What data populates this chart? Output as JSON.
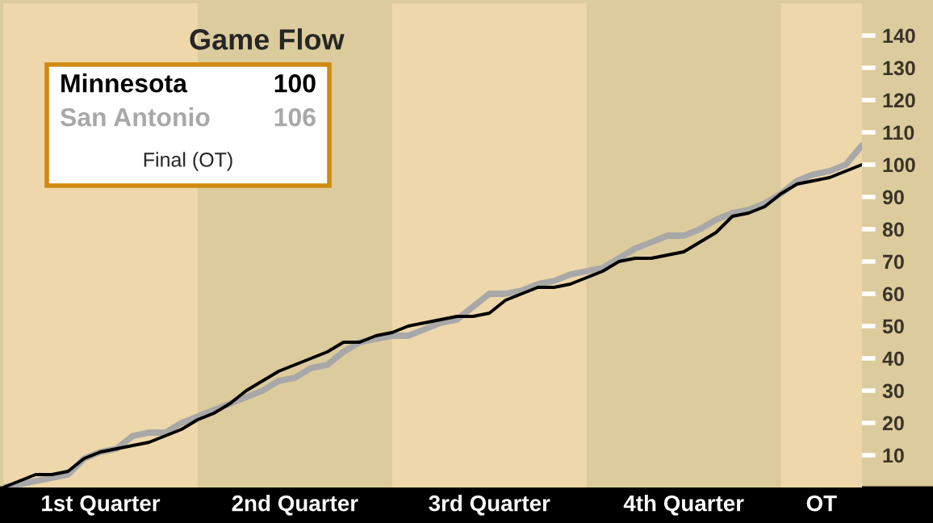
{
  "chart_data": {
    "type": "line",
    "title": "Game Flow",
    "categories": [
      null,
      null,
      null,
      null,
      null,
      null,
      null,
      null,
      null,
      null,
      null,
      null,
      null,
      null,
      null,
      null,
      null,
      null,
      null,
      null,
      null,
      null,
      null,
      null,
      null,
      null,
      null,
      null,
      null,
      null,
      null,
      null,
      null,
      null,
      null,
      null,
      null,
      null,
      null,
      null,
      null,
      null,
      null,
      null,
      null,
      null,
      null,
      null,
      null,
      null,
      null,
      null,
      null,
      null
    ],
    "ylim": [
      0,
      150
    ],
    "yticks": [
      10,
      20,
      30,
      40,
      50,
      60,
      70,
      80,
      90,
      100,
      110,
      120,
      130,
      140
    ],
    "legend": "top left",
    "annotations": [
      "100",
      "106",
      "Final (OT)",
      "1st Quarter",
      "2nd Quarter",
      "3rd Quarter",
      "4th Quarter",
      "OT"
    ],
    "series": [
      {
        "name": "Minnesota",
        "color": "#000000",
        "values": [
          0,
          2,
          4,
          4,
          5,
          9,
          11,
          12,
          13,
          14,
          16,
          18,
          21,
          23,
          26,
          30,
          33,
          36,
          38,
          40,
          42,
          45,
          45,
          47,
          48,
          50,
          51,
          52,
          53,
          53,
          54,
          58,
          60,
          62,
          62,
          63,
          65,
          67,
          70,
          71,
          71,
          72,
          73,
          76,
          79,
          84,
          85,
          87,
          91,
          94,
          95,
          96,
          98,
          100
        ]
      },
      {
        "name": "San Antonio",
        "color": "#a8a8a8",
        "values": [
          0,
          1,
          2,
          3,
          4,
          9,
          11,
          12,
          16,
          17,
          17,
          20,
          22,
          24,
          26,
          28,
          30,
          33,
          34,
          37,
          38,
          42,
          45,
          46,
          47,
          47,
          49,
          51,
          52,
          56,
          60,
          60,
          61,
          63,
          64,
          66,
          67,
          68,
          71,
          74,
          76,
          78,
          78,
          80,
          83,
          85,
          86,
          88,
          91,
          95,
          97,
          98,
          100,
          106
        ]
      }
    ]
  }
}
